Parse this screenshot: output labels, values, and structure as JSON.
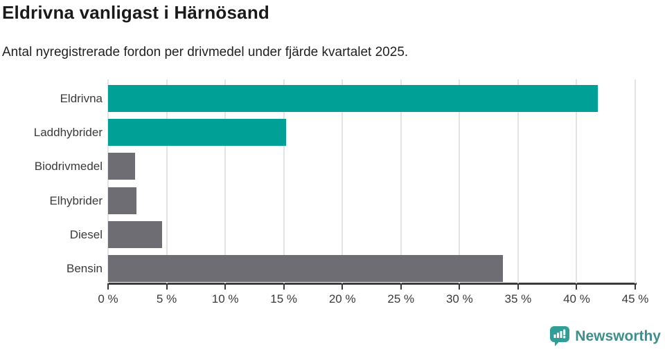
{
  "chart_data": {
    "type": "bar",
    "orientation": "horizontal",
    "title": "Eldrivna vanligast i Härnösand",
    "subtitle": "Antal nyregistrerade fordon per drivmedel under fjärde kvartalet 2025.",
    "categories": [
      "Eldrivna",
      "Laddhybrider",
      "Biodrivmedel",
      "Elhybrider",
      "Diesel",
      "Bensin"
    ],
    "values": [
      41.8,
      15.2,
      2.3,
      2.4,
      4.6,
      33.7
    ],
    "unit": "%",
    "xlabel": "",
    "ylabel": "",
    "xlim": [
      0,
      45
    ],
    "x_ticks": [
      0,
      5,
      10,
      15,
      20,
      25,
      30,
      35,
      40,
      45
    ],
    "x_tick_labels": [
      "0 %",
      "5 %",
      "10 %",
      "15 %",
      "20 %",
      "25 %",
      "30 %",
      "35 %",
      "40 %",
      "45 %"
    ],
    "grid": "vertical-only",
    "legend": "none",
    "bar_colors": [
      "#00a096",
      "#00a096",
      "#6d6d73",
      "#6d6d73",
      "#6d6d73",
      "#6d6d73"
    ],
    "colors": {
      "highlight_teal": "#00a096",
      "neutral_gray": "#6d6d73",
      "gridline": "#e4e4e4",
      "axis": "#3b3b3b",
      "text": "#3a3a3a"
    }
  },
  "footer": {
    "brand": "Newsworthy",
    "brand_text_color": "#3f8e8b",
    "brand_icon_color": "#2f9e97"
  }
}
